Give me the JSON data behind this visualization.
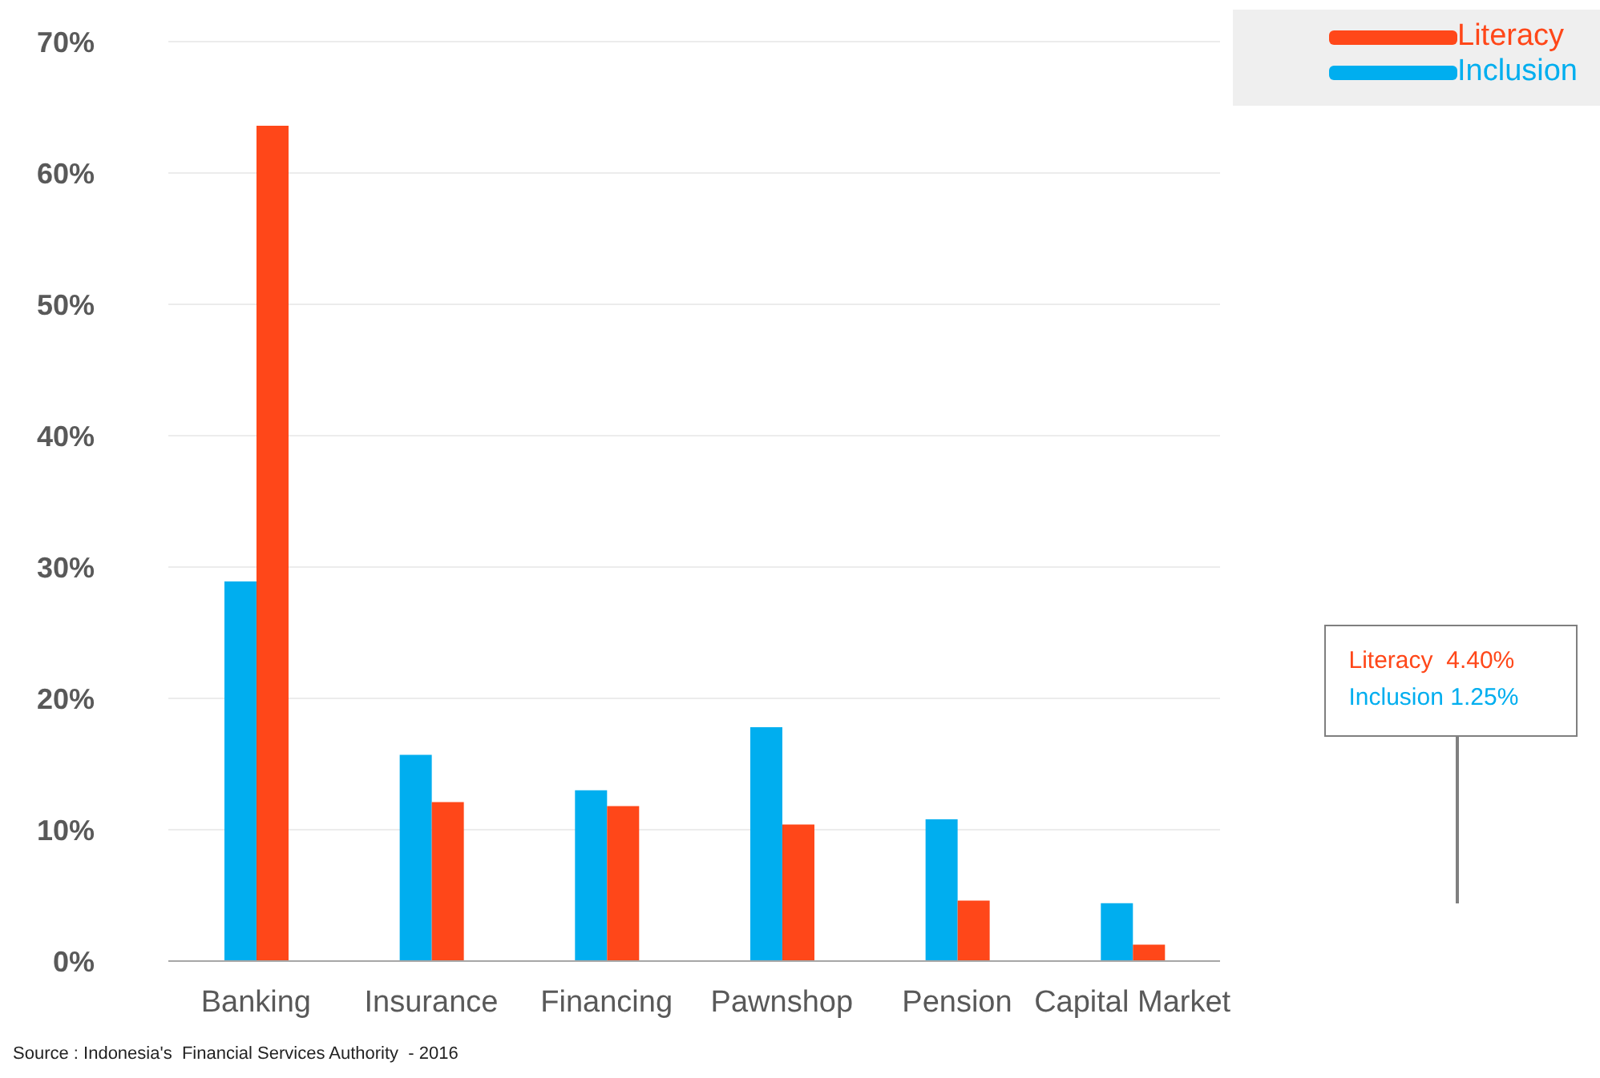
{
  "chart_data": {
    "type": "bar",
    "categories": [
      "Banking",
      "Insurance",
      "Financing",
      "Pawnshop",
      "Pension",
      "Capital Market"
    ],
    "series": [
      {
        "name": "Inclusion",
        "color": "#00aeef",
        "values": [
          28.9,
          15.7,
          13.0,
          17.8,
          10.8,
          4.4
        ]
      },
      {
        "name": "Literacy",
        "color": "#ff4719",
        "values": [
          63.6,
          12.1,
          11.8,
          10.4,
          4.6,
          1.25
        ]
      }
    ],
    "ylim": [
      0,
      70
    ],
    "yticks": [
      {
        "value": 0,
        "label": "0%"
      },
      {
        "value": 10,
        "label": "10%"
      },
      {
        "value": 20,
        "label": "20%"
      },
      {
        "value": 30,
        "label": "30%"
      },
      {
        "value": 40,
        "label": "40%"
      },
      {
        "value": 50,
        "label": "50%"
      },
      {
        "value": 60,
        "label": "60%"
      },
      {
        "value": 70,
        "label": "70%"
      }
    ],
    "grid": "y",
    "legend": "top right",
    "annotations": [
      "Literacy  4.40%",
      "Inclusion 1.25%",
      "Source : Indonesia's  Financial Services Authority  - 2016"
    ]
  }
}
